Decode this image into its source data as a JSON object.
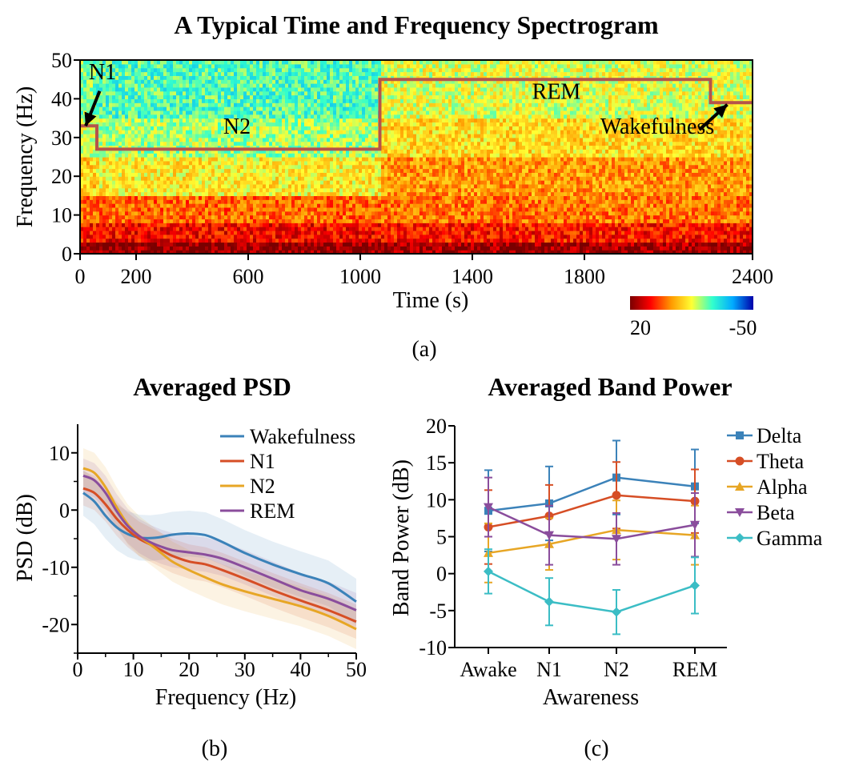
{
  "chart_data": [
    {
      "type": "heatmap",
      "panel_label": "(a)",
      "title": "A Typical Time and Frequency Spectrogram",
      "xlabel": "Time (s)",
      "ylabel": "Frequency (Hz)",
      "xlim": [
        0,
        2400
      ],
      "ylim": [
        0,
        50
      ],
      "xticks": [
        "0",
        "200",
        "600",
        "1000",
        "1400",
        "1800",
        "2400"
      ],
      "xtick_values": [
        0,
        200,
        600,
        1000,
        1400,
        1800,
        2400
      ],
      "yticks": [
        "0",
        "10",
        "20",
        "30",
        "40",
        "50"
      ],
      "ytick_values": [
        0,
        10,
        20,
        30,
        40,
        50
      ],
      "colorbar": {
        "min_label": "20",
        "max_label": "-50",
        "colors": [
          "#7a0000",
          "#ff0000",
          "#ff9900",
          "#ffff33",
          "#33ffcc",
          "#00aaff",
          "#0000aa"
        ]
      },
      "hypnogram": {
        "color": "#b5534a",
        "points": [
          [
            0,
            33
          ],
          [
            60,
            33
          ],
          [
            60,
            27
          ],
          [
            1070,
            27
          ],
          [
            1070,
            45
          ],
          [
            2250,
            45
          ],
          [
            2250,
            39
          ],
          [
            2400,
            39
          ]
        ]
      },
      "annotations": [
        {
          "text": "N1",
          "x": 80,
          "y": 45
        },
        {
          "text": "N2",
          "x": 560,
          "y": 31
        },
        {
          "text": "REM",
          "x": 1700,
          "y": 40
        },
        {
          "text": "Wakefulness",
          "x": 2060,
          "y": 31
        }
      ]
    },
    {
      "type": "line",
      "panel_label": "(b)",
      "title": "Averaged PSD",
      "xlabel": "Frequency (Hz)",
      "ylabel": "PSD (dB)",
      "xlim": [
        0,
        50
      ],
      "ylim": [
        -25,
        15
      ],
      "xticks": [
        "0",
        "10",
        "20",
        "30",
        "40",
        "50"
      ],
      "xtick_values": [
        0,
        10,
        20,
        30,
        40,
        50
      ],
      "yticks": [
        "10",
        "0",
        "-10",
        "-20"
      ],
      "ytick_values": [
        10,
        0,
        -10,
        -20
      ],
      "legend_position": "top-right",
      "x": [
        1,
        3,
        5,
        7,
        9,
        11,
        13,
        15,
        17,
        20,
        23,
        26,
        30,
        35,
        40,
        45,
        50
      ],
      "series": [
        {
          "name": "Wakefulness",
          "color": "#3b82b9",
          "values": [
            3.0,
            1.5,
            -1.0,
            -3.0,
            -4.2,
            -4.8,
            -4.9,
            -4.7,
            -4.3,
            -4.1,
            -4.4,
            -5.6,
            -7.5,
            -9.5,
            -11.2,
            -12.8,
            -16.0
          ],
          "band": 4
        },
        {
          "name": "N1",
          "color": "#d64e25",
          "values": [
            3.8,
            3.0,
            1.0,
            -1.5,
            -3.5,
            -5.0,
            -6.0,
            -7.0,
            -8.0,
            -9.0,
            -9.5,
            -10.5,
            -12.0,
            -14.0,
            -15.8,
            -17.5,
            -19.5
          ],
          "band": 3
        },
        {
          "name": "N2",
          "color": "#e7a625",
          "values": [
            7.3,
            6.5,
            4.0,
            0.5,
            -2.5,
            -4.5,
            -6.0,
            -7.5,
            -9.0,
            -10.5,
            -11.8,
            -13.0,
            -14.2,
            -15.5,
            -16.8,
            -18.5,
            -20.8
          ],
          "band": 3.5
        },
        {
          "name": "REM",
          "color": "#8a4d9c",
          "values": [
            6.0,
            5.2,
            3.0,
            -0.2,
            -2.8,
            -4.5,
            -5.6,
            -6.4,
            -7.0,
            -7.4,
            -7.8,
            -8.5,
            -10.0,
            -12.0,
            -14.0,
            -15.5,
            -17.5
          ],
          "band": 3
        }
      ]
    },
    {
      "type": "line",
      "panel_label": "(c)",
      "title": "Averaged Band Power",
      "xlabel": "Awareness",
      "ylabel": "Band Power (dB)",
      "ylim": [
        -10,
        20
      ],
      "categories": [
        "Awake",
        "N1",
        "N2",
        "REM"
      ],
      "yticks": [
        "20",
        "15",
        "10",
        "5",
        "0",
        "-5",
        "-10"
      ],
      "ytick_values": [
        20,
        15,
        10,
        5,
        0,
        -5,
        -10
      ],
      "legend_position": "top-right",
      "series": [
        {
          "name": "Delta",
          "color": "#3b82b9",
          "marker": "square",
          "values": [
            8.5,
            9.5,
            13.0,
            11.8
          ],
          "err": [
            5.5,
            5.0,
            5.0,
            5.0
          ]
        },
        {
          "name": "Theta",
          "color": "#d64e25",
          "marker": "circle",
          "values": [
            6.3,
            7.8,
            10.6,
            9.8
          ],
          "err": [
            5.0,
            4.2,
            4.5,
            4.3
          ]
        },
        {
          "name": "Alpha",
          "color": "#e7a625",
          "marker": "triangle-up",
          "values": [
            2.8,
            4.0,
            5.9,
            5.2
          ],
          "err": [
            4.0,
            3.5,
            4.0,
            4.0
          ]
        },
        {
          "name": "Beta",
          "color": "#8a4d9c",
          "marker": "triangle-down",
          "values": [
            9.0,
            5.2,
            4.7,
            6.6
          ],
          "err": [
            4.0,
            4.0,
            3.5,
            4.3
          ]
        },
        {
          "name": "Gamma",
          "color": "#3bbdc5",
          "marker": "diamond",
          "values": [
            0.3,
            -3.8,
            -5.2,
            -1.6
          ],
          "err": [
            3.0,
            3.2,
            3.0,
            3.8
          ]
        }
      ]
    }
  ]
}
